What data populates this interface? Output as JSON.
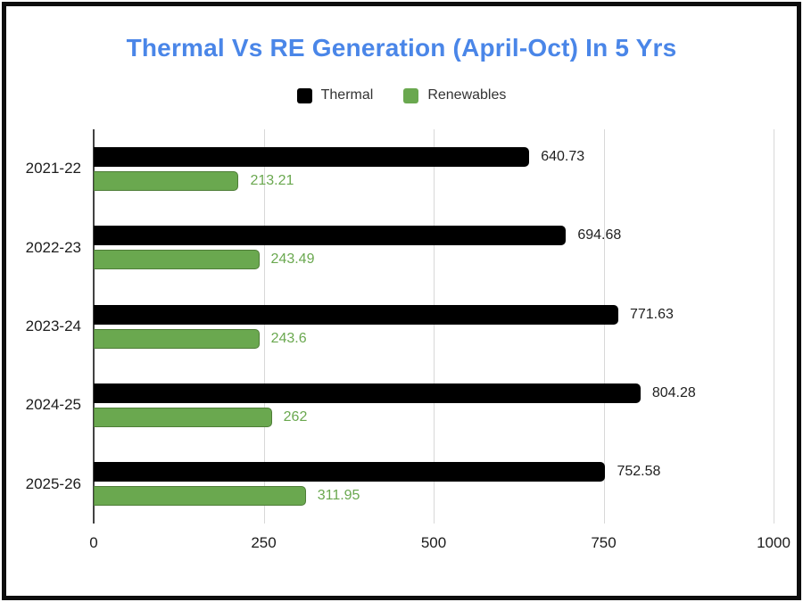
{
  "window": {
    "border_color": "#0d0d0d",
    "background": "#ffffff"
  },
  "title": {
    "text": "Thermal Vs RE Generation (April-Oct) In 5 Yrs",
    "color": "#4a86e8"
  },
  "legend": [
    {
      "label": "Thermal",
      "color": "#000000"
    },
    {
      "label": "Renewables",
      "color": "#6aa84f"
    }
  ],
  "chart_data": {
    "type": "bar",
    "orientation": "horizontal",
    "title": "Thermal Vs RE Generation (April-Oct) In 5 Yrs",
    "categories": [
      "2021-22",
      "2022-23",
      "2023-24",
      "2024-25",
      "2025-26"
    ],
    "series": [
      {
        "name": "Thermal",
        "color": "#000000",
        "label_color": "#1f1f1f",
        "values": [
          640.73,
          694.68,
          771.63,
          804.28,
          752.58
        ],
        "labels": [
          "640.73",
          "694.68",
          "771.63",
          "804.28",
          "752.58"
        ]
      },
      {
        "name": "Renewables",
        "color": "#6aa84f",
        "label_color": "#6aa84f",
        "values": [
          213.21,
          243.49,
          243.6,
          262,
          311.95
        ],
        "labels": [
          "213.21",
          "243.49",
          "243.6",
          "262",
          "311.95"
        ]
      }
    ],
    "x_axis": {
      "min": 0,
      "max": 1000,
      "ticks": [
        0,
        250,
        500,
        750,
        1000
      ],
      "tick_labels": [
        "0",
        "250",
        "500",
        "750",
        "1000"
      ]
    },
    "grid": true,
    "legend_position": "top",
    "gridline_color": "#d8d8d8",
    "axis_line_color": "#424242"
  }
}
